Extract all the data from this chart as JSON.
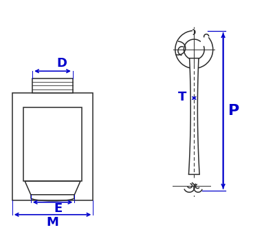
{
  "bg_color": "#ffffff",
  "line_color": "#2a2a2a",
  "dim_color": "#0000cc",
  "label_D": "D",
  "label_E": "E",
  "label_M": "M",
  "label_P": "P",
  "label_T": "T",
  "fig_width": 4.0,
  "fig_height": 3.37,
  "dpi": 100
}
